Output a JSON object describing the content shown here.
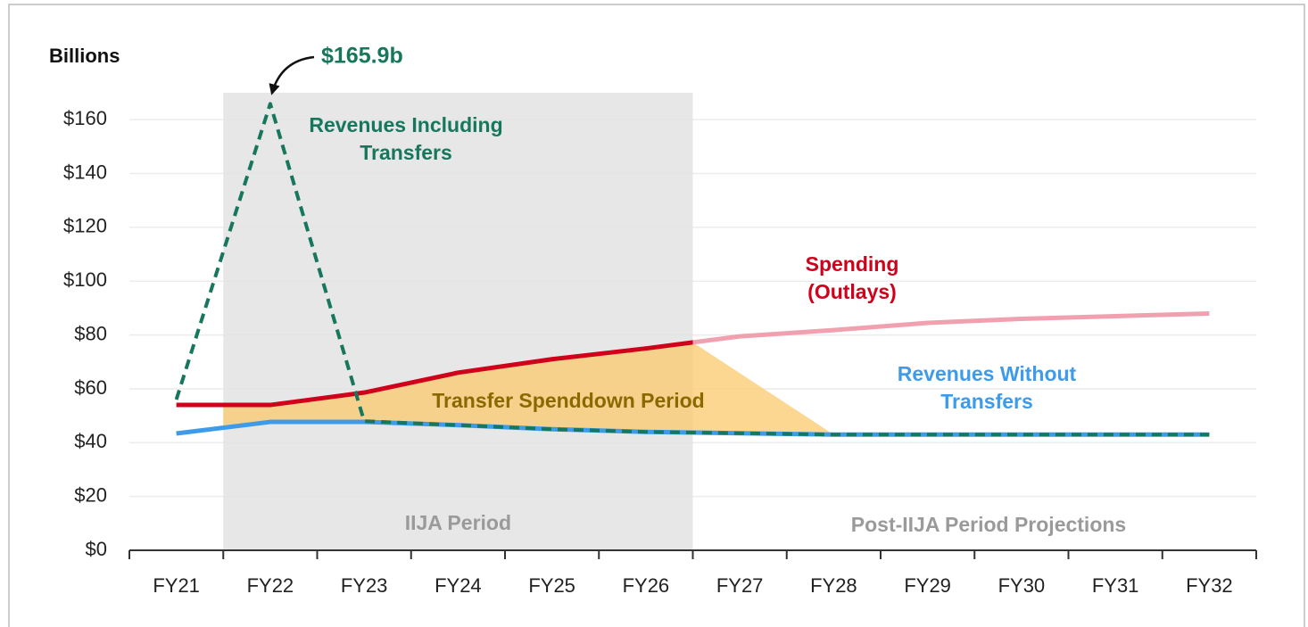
{
  "chart_data": {
    "type": "line",
    "y_label": "Billions",
    "categories": [
      "FY21",
      "FY22",
      "FY23",
      "FY24",
      "FY25",
      "FY26",
      "FY27",
      "FY28",
      "FY29",
      "FY30",
      "FY31",
      "FY32"
    ],
    "ylim": [
      0,
      170
    ],
    "yticks": [
      {
        "value": 0,
        "label": "$0"
      },
      {
        "value": 20,
        "label": "$20"
      },
      {
        "value": 40,
        "label": "$40"
      },
      {
        "value": 60,
        "label": "$60"
      },
      {
        "value": 80,
        "label": "$80"
      },
      {
        "value": 100,
        "label": "$100"
      },
      {
        "value": 120,
        "label": "$120"
      },
      {
        "value": 140,
        "label": "$140"
      },
      {
        "value": 160,
        "label": "$160"
      }
    ],
    "grid": true,
    "shaded_period": {
      "from": "FY22",
      "to": "FY26",
      "label": "IIJA Period",
      "color": "#e3e3e3"
    },
    "projection_label": "Post-IIJA Period Projections",
    "spenddown": {
      "label": "Transfer Spenddown Period",
      "from": "FY22",
      "to": "FY28",
      "color": "#fbc96e"
    },
    "series": [
      {
        "name_lines": [
          "Spending",
          "(Outlays)"
        ],
        "color": "#d0021b",
        "projection_color": "#f1a0af",
        "dashed": false,
        "values": [
          54,
          54,
          58.6,
          66,
          71,
          75,
          79.5,
          81.8,
          84.5,
          86,
          87,
          88
        ]
      },
      {
        "name_lines": [
          "Revenues Without",
          "Transfers"
        ],
        "color": "#3d9be9",
        "dashed": false,
        "values": [
          43.4,
          47.7,
          47.7,
          46.5,
          45,
          44,
          43.5,
          43,
          43,
          43,
          43,
          43
        ]
      },
      {
        "name_lines": [
          "Revenues Including",
          "Transfers"
        ],
        "color": "#17775c",
        "dashed": true,
        "values": [
          56,
          165.9,
          48,
          46.5,
          45,
          44,
          43.5,
          43,
          43,
          43,
          43,
          43
        ],
        "value_labels": [
          null,
          "$165.9b",
          null,
          null,
          null,
          null,
          null,
          null,
          null,
          null,
          null,
          null
        ]
      }
    ]
  }
}
